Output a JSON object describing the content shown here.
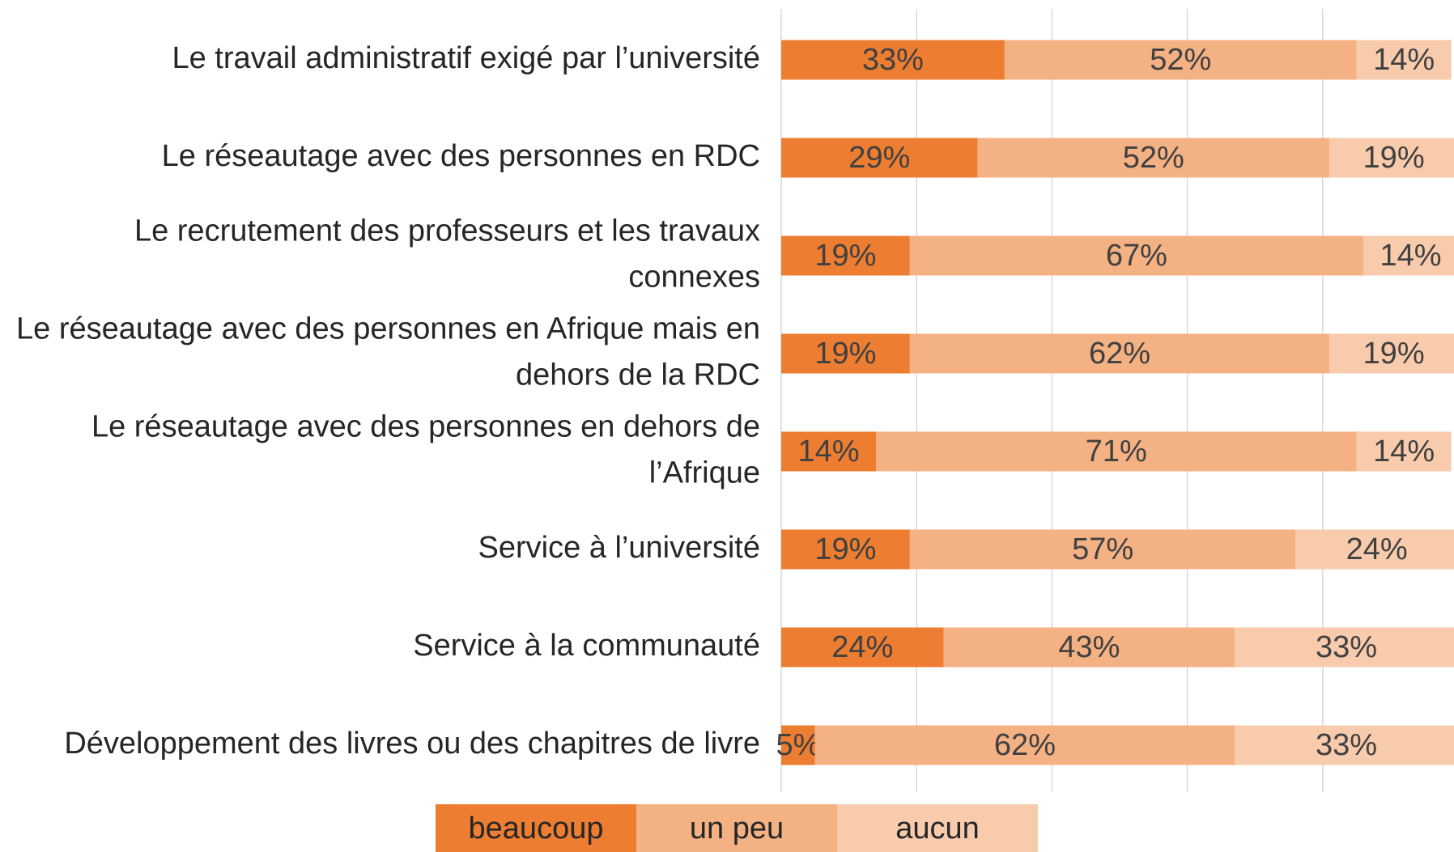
{
  "chart_data": {
    "type": "stacked_bar_horizontal",
    "categories": [
      "Le travail administratif exigé par l’université",
      "Le réseautage avec des personnes en RDC",
      "Le recrutement des professeurs et les travaux connexes",
      "Le réseautage avec des personnes en Afrique mais en dehors de la RDC",
      "Le réseautage avec des personnes en dehors de l’Afrique",
      "Service à l’université",
      "Service à la communauté",
      "Développement des livres ou des chapitres de livre"
    ],
    "series": [
      {
        "name": "beaucoup",
        "color": "#ED7D31",
        "values": [
          33,
          29,
          19,
          19,
          14,
          19,
          24,
          5
        ],
        "value_labels": [
          "33%",
          "29%",
          "19%",
          "19%",
          "14%",
          "19%",
          "24%",
          "5%"
        ]
      },
      {
        "name": "un peu",
        "color": "#F4B183",
        "values": [
          52,
          52,
          67,
          62,
          71,
          57,
          43,
          62
        ],
        "value_labels": [
          "52%",
          "52%",
          "67%",
          "62%",
          "71%",
          "57%",
          "43%",
          "62%"
        ]
      },
      {
        "name": "aucun",
        "color": "#F8CBAD",
        "values": [
          14,
          19,
          14,
          19,
          14,
          24,
          33,
          33
        ],
        "value_labels": [
          "14%",
          "19%",
          "14%",
          "19%",
          "14%",
          "24%",
          "33%",
          "33%"
        ]
      }
    ],
    "xlim": [
      0,
      100
    ],
    "xticks": [
      0,
      20,
      40,
      60,
      80,
      100
    ],
    "grid": true,
    "legend": "bottom"
  }
}
